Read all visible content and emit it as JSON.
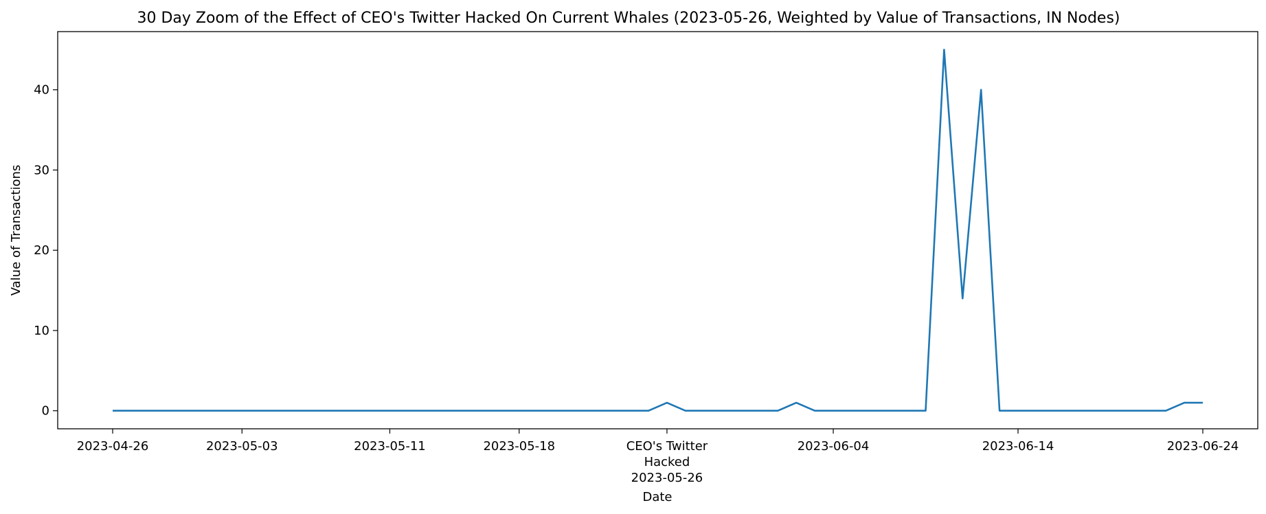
{
  "chart_data": {
    "type": "line",
    "title": "30 Day Zoom of the Effect of CEO's Twitter Hacked On Current Whales (2023-05-26, Weighted by Value of Transactions, IN Nodes)",
    "xlabel": "Date",
    "ylabel": "Value of Transactions",
    "x_start": "2023-04-26",
    "x_end": "2023-06-24",
    "ylim": [
      -2.25,
      47.25
    ],
    "yticks": [
      0,
      10,
      20,
      30,
      40
    ],
    "xticks": [
      {
        "date": "2023-04-26",
        "label": [
          "2023-04-26"
        ]
      },
      {
        "date": "2023-05-03",
        "label": [
          "2023-05-03"
        ]
      },
      {
        "date": "2023-05-11",
        "label": [
          "2023-05-11"
        ]
      },
      {
        "date": "2023-05-18",
        "label": [
          "2023-05-18"
        ]
      },
      {
        "date": "2023-05-26",
        "label": [
          "CEO's Twitter",
          "Hacked",
          "2023-05-26"
        ]
      },
      {
        "date": "2023-06-04",
        "label": [
          "2023-06-04"
        ]
      },
      {
        "date": "2023-06-14",
        "label": [
          "2023-06-14"
        ]
      },
      {
        "date": "2023-06-24",
        "label": [
          "2023-06-24"
        ]
      }
    ],
    "grid": false,
    "series": [
      {
        "color": "#1f77b4",
        "points": [
          [
            "2023-04-26",
            0
          ],
          [
            "2023-05-25",
            0
          ],
          [
            "2023-05-26",
            1
          ],
          [
            "2023-05-27",
            0
          ],
          [
            "2023-06-01",
            0
          ],
          [
            "2023-06-02",
            1
          ],
          [
            "2023-06-03",
            0
          ],
          [
            "2023-06-09",
            0
          ],
          [
            "2023-06-10",
            45
          ],
          [
            "2023-06-11",
            14
          ],
          [
            "2023-06-12",
            40
          ],
          [
            "2023-06-13",
            0
          ],
          [
            "2023-06-22",
            0
          ],
          [
            "2023-06-23",
            1
          ],
          [
            "2023-06-24",
            1
          ]
        ]
      }
    ]
  }
}
